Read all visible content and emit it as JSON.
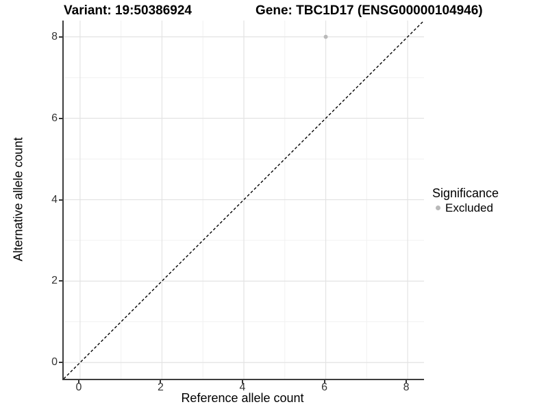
{
  "titles": {
    "variant": "Variant: 19:50386924",
    "gene": "Gene: TBC1D17 (ENSG00000104946)"
  },
  "legend": {
    "title": "Significance",
    "items": [
      {
        "label": "Excluded",
        "color": "#b9b9b9"
      }
    ]
  },
  "chart_data": {
    "type": "scatter",
    "title": "Variant: 19:50386924   Gene: TBC1D17 (ENSG00000104946)",
    "xlabel": "Reference allele count",
    "ylabel": "Alternative allele count",
    "xlim": [
      -0.4,
      8.4
    ],
    "ylim": [
      -0.4,
      8.4
    ],
    "x_ticks": [
      0,
      2,
      4,
      6,
      8
    ],
    "y_ticks": [
      0,
      2,
      4,
      6,
      8
    ],
    "x_minor_ticks": [
      1,
      3,
      5,
      7
    ],
    "y_minor_ticks": [
      1,
      3,
      5,
      7
    ],
    "grid": "on",
    "legend_position": "right",
    "legend_title": "Significance",
    "series": [
      {
        "name": "Excluded",
        "color": "#b9b9b9",
        "point_radius": 3,
        "points": [
          {
            "x": 6,
            "y": 8
          }
        ]
      }
    ],
    "reference_line": {
      "type": "identity",
      "style": "dashed",
      "color": "#000000"
    }
  },
  "colors": {
    "grid_major": "#e3e3e3",
    "grid_minor": "#f1f1f1",
    "axis_line": "#3d3d3d",
    "tick_text": "#333333",
    "background": "#ffffff"
  }
}
